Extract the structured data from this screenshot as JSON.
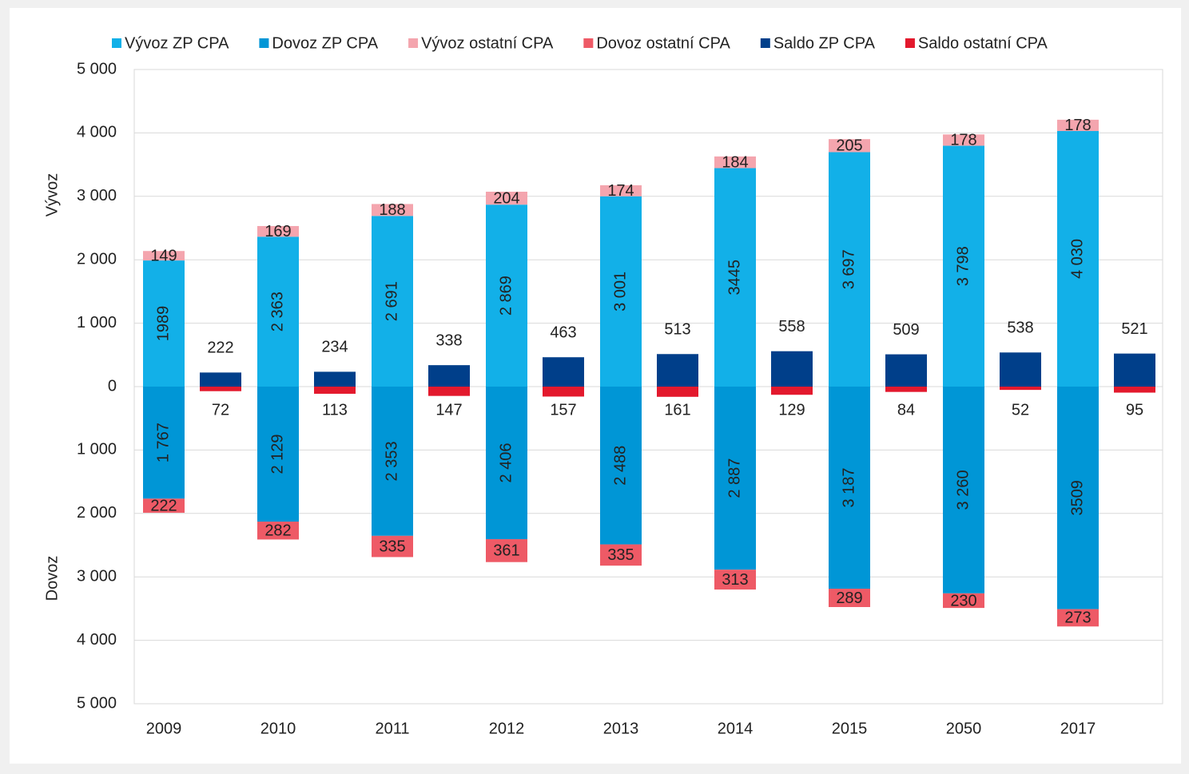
{
  "chart_data": {
    "type": "bar",
    "categories": [
      "2009",
      "2010",
      "2011",
      "2012",
      "2013",
      "2014",
      "2015",
      "2050",
      "2017"
    ],
    "ylabel_top": "Vývoz",
    "ylabel_bottom": "Dovoz",
    "ylim": [
      -5000,
      5000
    ],
    "yticks": [
      {
        "value": 5000,
        "label": "5 000"
      },
      {
        "value": 4000,
        "label": "4 000"
      },
      {
        "value": 3000,
        "label": "3 000"
      },
      {
        "value": 2000,
        "label": "2 000"
      },
      {
        "value": 1000,
        "label": "1 000"
      },
      0,
      {
        "value": -1000,
        "label": "1 000"
      },
      {
        "value": -2000,
        "label": "2 000"
      },
      {
        "value": -3000,
        "label": "3 000"
      },
      {
        "value": -4000,
        "label": "4 000"
      },
      {
        "value": -5000,
        "label": "5 000"
      }
    ],
    "grid": true,
    "legend": "top",
    "series": [
      {
        "name": "Vývoz ZP CPA",
        "color": "#12b0e8",
        "values": [
          1989,
          2363,
          2691,
          2869,
          3001,
          3445,
          3697,
          3798,
          4030
        ],
        "value_labels": [
          "1989",
          "2 363",
          "2 691",
          "2 869",
          "3 001",
          "3445",
          "3 697",
          "3 798",
          "4 030"
        ]
      },
      {
        "name": "Dovoz ZP CPA",
        "color": "#0096d6",
        "values": [
          -1767,
          -2129,
          -2353,
          -2406,
          -2488,
          -2887,
          -3187,
          -3260,
          -3509
        ],
        "value_labels": [
          "1 767",
          "2 129",
          "2 353",
          "2 406",
          "2 488",
          "2 887",
          "3 187",
          "3 260",
          "3509"
        ]
      },
      {
        "name": "Vývoz ostatní CPA",
        "color": "#f4a5ae",
        "values": [
          149,
          169,
          188,
          204,
          174,
          184,
          205,
          178,
          178
        ],
        "value_labels": [
          "149",
          "169",
          "188",
          "204",
          "174",
          "184",
          "205",
          "178",
          "178"
        ]
      },
      {
        "name": "Dovoz ostatní CPA",
        "color": "#ee5a66",
        "values": [
          -222,
          -282,
          -335,
          -361,
          -335,
          -313,
          -289,
          -230,
          -273
        ],
        "value_labels": [
          "222",
          "282",
          "335",
          "361",
          "335",
          "313",
          "289",
          "230",
          "273"
        ]
      },
      {
        "name": "Saldo ZP CPA",
        "color": "#003f8a",
        "values": [
          222,
          234,
          338,
          463,
          513,
          558,
          509,
          538,
          521
        ],
        "value_labels": [
          "222",
          "234",
          "338",
          "463",
          "513",
          "558",
          "509",
          "538",
          "521"
        ]
      },
      {
        "name": "Saldo ostatní CPA",
        "color": "#e3192d",
        "values": [
          -72,
          -113,
          -147,
          -157,
          -161,
          -129,
          -84,
          -52,
          -95
        ],
        "value_labels": [
          "72",
          "113",
          "147",
          "157",
          "161",
          "129",
          "84",
          "52",
          "95"
        ]
      }
    ]
  }
}
